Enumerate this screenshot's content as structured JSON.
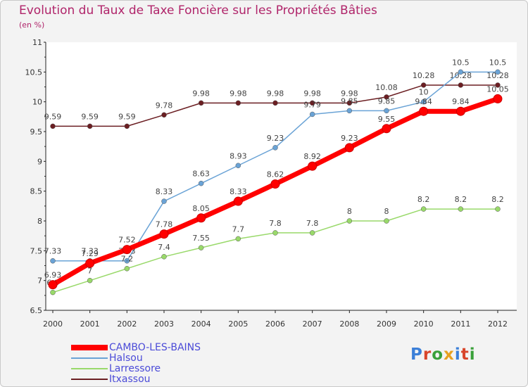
{
  "title": "Evolution du Taux de Taxe Foncière sur les Propriétés Bâties",
  "unit_label": "(en %)",
  "logo_text": "Proxiti",
  "chart_data": {
    "type": "line",
    "title": "Evolution du Taux de Taxe Foncière sur les Propriétés Bâties",
    "ylabel": "(en %)",
    "xlabel": "",
    "x": [
      "2000",
      "2001",
      "2002",
      "2003",
      "2004",
      "2005",
      "2006",
      "2007",
      "2008",
      "2009",
      "2010",
      "2011",
      "2012"
    ],
    "ylim": [
      6.5,
      11
    ],
    "yticks": [
      "6.5",
      "7",
      "7.5",
      "8",
      "8.5",
      "9",
      "9.5",
      "10",
      "10.5",
      "11"
    ],
    "grid": false,
    "legend_position": "bottom-left",
    "series": [
      {
        "name": "Itxassou",
        "color": "#6b1e22",
        "values": [
          9.59,
          9.59,
          9.59,
          9.78,
          9.98,
          9.98,
          9.98,
          9.98,
          9.98,
          10.08,
          10.28,
          10.28,
          10.28
        ],
        "labels": [
          "9.59",
          "9.59",
          "9.59",
          "9.78",
          "9.98",
          "9.98",
          "9.98",
          "9.98",
          "9.98",
          "10.08",
          "10.28",
          "10.28",
          "10.28"
        ]
      },
      {
        "name": "Halsou",
        "color": "#6aa3d6",
        "values": [
          7.33,
          7.33,
          7.33,
          8.33,
          8.63,
          8.93,
          9.23,
          9.79,
          9.85,
          9.85,
          10,
          10.5,
          10.5
        ],
        "labels": [
          "7.33",
          "7.33",
          "7.33",
          "8.33",
          "8.63",
          "8.93",
          "9.23",
          "9.79",
          "9.85",
          "9.85",
          "10",
          "10.5",
          "10.5"
        ]
      },
      {
        "name": "Larressore",
        "color": "#99d96a",
        "values": [
          6.8,
          7,
          7.2,
          7.4,
          7.55,
          7.7,
          7.8,
          7.8,
          8,
          8,
          8.2,
          8.2,
          8.2
        ],
        "labels": [
          "6.8",
          "7",
          "7.2",
          "7.4",
          "7.55",
          "7.7",
          "7.8",
          "7.8",
          "8",
          "8",
          "8.2",
          "8.2",
          "8.2"
        ]
      },
      {
        "name": "CAMBO-LES-BAINS",
        "color": "#ff0000",
        "values": [
          6.93,
          7.29,
          7.52,
          7.78,
          8.05,
          8.33,
          8.62,
          8.92,
          9.23,
          9.55,
          9.84,
          9.84,
          10.05
        ],
        "labels": [
          "6.93",
          "7.29",
          "7.52",
          "7.78",
          "8.05",
          "8.33",
          "8.62",
          "8.92",
          "9.23",
          "9.55",
          "9.84",
          "9.84",
          "10.05"
        ]
      }
    ]
  },
  "legend": [
    {
      "name": "CAMBO-LES-BAINS",
      "color": "#ff0000"
    },
    {
      "name": "Halsou",
      "color": "#6aa3d6"
    },
    {
      "name": "Larressore",
      "color": "#99d96a"
    },
    {
      "name": "Itxassou",
      "color": "#6b1e22"
    }
  ]
}
